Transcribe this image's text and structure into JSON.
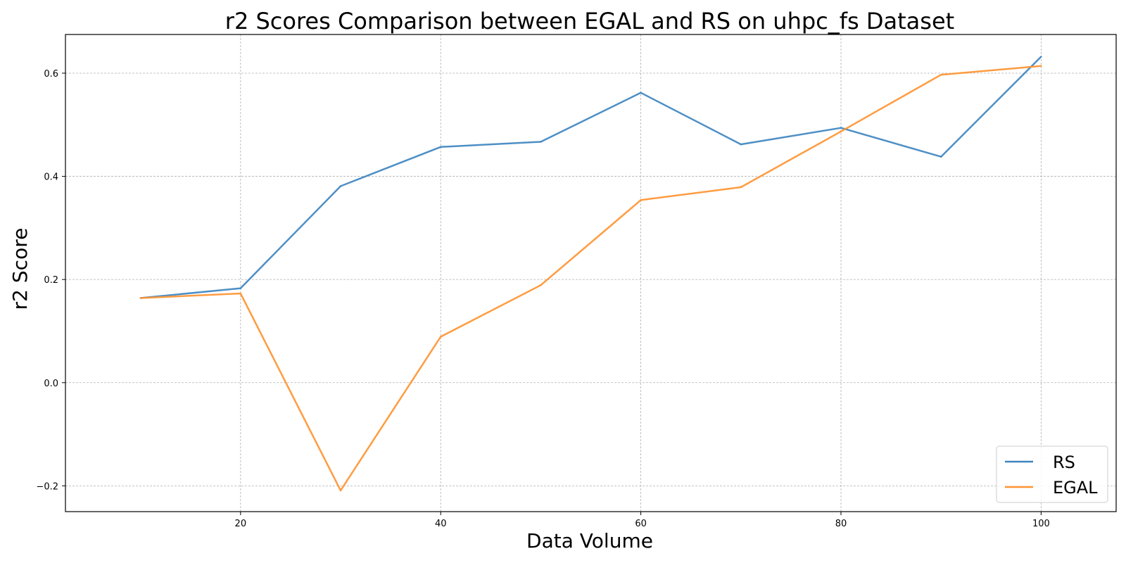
{
  "chart_data": {
    "type": "line",
    "title": "r2 Scores Comparison between EGAL and RS on uhpc_fs Dataset",
    "xlabel": "Data Volume",
    "ylabel": "r2 Score",
    "x": [
      10,
      20,
      30,
      40,
      50,
      60,
      70,
      80,
      90,
      100
    ],
    "xlim": [
      2.5,
      107.5
    ],
    "ylim": [
      -0.25,
      0.675
    ],
    "xticks": [
      20,
      40,
      60,
      80,
      100
    ],
    "yticks": [
      -0.2,
      0.0,
      0.2,
      0.4,
      0.6
    ],
    "xtick_labels": [
      "20",
      "40",
      "60",
      "80",
      "100"
    ],
    "ytick_labels": [
      "−0.2",
      "0.0",
      "0.2",
      "0.4",
      "0.6"
    ],
    "grid": true,
    "legend_position": "bottom-right",
    "series": [
      {
        "name": "RS",
        "color": "#3f86c0",
        "values": [
          0.164,
          0.183,
          0.381,
          0.457,
          0.467,
          0.562,
          0.462,
          0.494,
          0.438,
          0.632
        ]
      },
      {
        "name": "EGAL",
        "color": "#ff9431",
        "values": [
          0.164,
          0.173,
          -0.209,
          0.089,
          0.189,
          0.354,
          0.379,
          0.487,
          0.597,
          0.614
        ]
      }
    ]
  }
}
